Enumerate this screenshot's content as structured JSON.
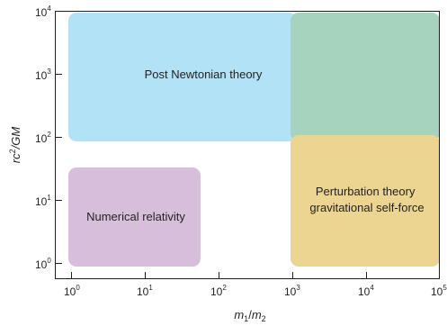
{
  "chart_data": {
    "type": "region-diagram",
    "x_axis": {
      "label_base": "m",
      "label_sub1": "1",
      "label_slash": "/",
      "label_sub2": "2",
      "scale": "log",
      "range": [
        1,
        100000
      ],
      "ticks": [
        {
          "base": "10",
          "exp": "0"
        },
        {
          "base": "10",
          "exp": "1"
        },
        {
          "base": "10",
          "exp": "2"
        },
        {
          "base": "10",
          "exp": "3"
        },
        {
          "base": "10",
          "exp": "4"
        },
        {
          "base": "10",
          "exp": "5"
        }
      ]
    },
    "y_axis": {
      "label_r": "rc",
      "label_exp": "2",
      "label_rest": "/GM",
      "scale": "log",
      "range": [
        1,
        10000
      ],
      "ticks": [
        {
          "base": "10",
          "exp": "0"
        },
        {
          "base": "10",
          "exp": "1"
        },
        {
          "base": "10",
          "exp": "2"
        },
        {
          "base": "10",
          "exp": "3"
        },
        {
          "base": "10",
          "exp": "4"
        }
      ]
    },
    "regions": [
      {
        "label": "Post Newtonian theory",
        "x": [
          1,
          1000
        ],
        "y": [
          100,
          10000
        ],
        "color": "#b2e2f6"
      },
      {
        "label": "",
        "x": [
          1000,
          100000
        ],
        "y": [
          100,
          10000
        ],
        "color": "#a6d3be"
      },
      {
        "label_lines": [
          "Perturbation theory",
          "gravitational self-force"
        ],
        "x": [
          1000,
          100000
        ],
        "y": [
          1,
          100
        ],
        "color": "#ecd591"
      },
      {
        "label": "Numerical relativity",
        "x": [
          1,
          50
        ],
        "y": [
          1,
          30
        ],
        "color": "#d7bfdb"
      }
    ]
  }
}
